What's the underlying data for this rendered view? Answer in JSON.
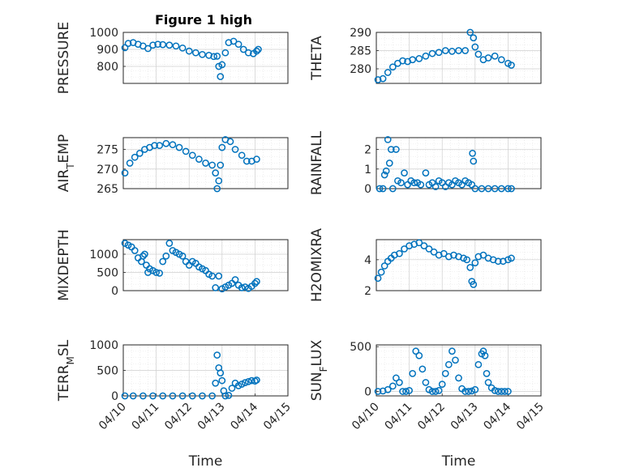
{
  "figure": {
    "title": "Figure 1 high",
    "marker_color": "#0072BD"
  },
  "chart_data": [
    {
      "type": "scatter",
      "ylabel": "PRESSURE",
      "ylim": [
        700,
        1000
      ],
      "yticks": [
        800,
        900,
        1000
      ],
      "xlim": [
        0,
        5
      ],
      "xticks": [],
      "x": [
        0.05,
        0.15,
        0.3,
        0.45,
        0.6,
        0.75,
        0.9,
        1.05,
        1.2,
        1.4,
        1.6,
        1.8,
        2.0,
        2.2,
        2.4,
        2.6,
        2.75,
        2.85,
        2.9,
        2.95,
        3.0,
        3.1,
        3.2,
        3.35,
        3.5,
        3.65,
        3.8,
        3.95,
        4.05,
        4.1
      ],
      "y": [
        910,
        935,
        940,
        930,
        920,
        905,
        925,
        930,
        928,
        925,
        920,
        908,
        890,
        880,
        870,
        865,
        858,
        860,
        800,
        740,
        810,
        880,
        940,
        948,
        930,
        900,
        880,
        875,
        890,
        900
      ]
    },
    {
      "type": "scatter",
      "ylabel": "THETA",
      "ylim": [
        276,
        290
      ],
      "yticks": [
        280,
        285,
        290
      ],
      "xlim": [
        0,
        5
      ],
      "xticks": [],
      "x": [
        0.05,
        0.2,
        0.35,
        0.5,
        0.65,
        0.8,
        0.95,
        1.1,
        1.3,
        1.5,
        1.7,
        1.9,
        2.1,
        2.3,
        2.5,
        2.7,
        2.85,
        2.95,
        3.0,
        3.1,
        3.25,
        3.4,
        3.6,
        3.8,
        4.0,
        4.1
      ],
      "y": [
        277.0,
        277.3,
        279.0,
        280.5,
        281.5,
        282.2,
        282.0,
        282.5,
        282.8,
        283.5,
        284.2,
        284.5,
        285.0,
        284.8,
        285.0,
        285.0,
        290.0,
        288.5,
        286.0,
        284.0,
        282.5,
        283.0,
        283.5,
        282.5,
        281.5,
        281.0
      ]
    },
    {
      "type": "scatter",
      "ylabel": "AIR_TEMP",
      "ylim": [
        265,
        278
      ],
      "yticks": [
        265,
        270,
        275
      ],
      "xlim": [
        0,
        5
      ],
      "xticks": [],
      "x": [
        0.05,
        0.2,
        0.35,
        0.5,
        0.65,
        0.8,
        0.95,
        1.1,
        1.3,
        1.5,
        1.7,
        1.9,
        2.1,
        2.3,
        2.5,
        2.7,
        2.8,
        2.85,
        2.9,
        2.95,
        3.0,
        3.1,
        3.25,
        3.4,
        3.6,
        3.75,
        3.9,
        4.05
      ],
      "y": [
        269.0,
        271.5,
        273.0,
        274.0,
        275.0,
        275.5,
        276.0,
        276.0,
        276.5,
        276.2,
        275.5,
        274.5,
        273.5,
        272.5,
        271.5,
        271.0,
        269.0,
        265.0,
        267.0,
        271.0,
        275.5,
        277.5,
        277.0,
        275.0,
        273.5,
        272.0,
        272.0,
        272.5
      ]
    },
    {
      "type": "scatter",
      "ylabel": "RAINFALL",
      "ylim": [
        0,
        2.6
      ],
      "yticks": [
        0,
        1,
        2
      ],
      "xlim": [
        0,
        5
      ],
      "xticks": [],
      "x": [
        0.1,
        0.2,
        0.25,
        0.3,
        0.35,
        0.4,
        0.45,
        0.5,
        0.6,
        0.65,
        0.75,
        0.85,
        0.95,
        1.05,
        1.15,
        1.25,
        1.35,
        1.5,
        1.6,
        1.7,
        1.8,
        1.9,
        2.0,
        2.1,
        2.2,
        2.3,
        2.4,
        2.5,
        2.6,
        2.7,
        2.8,
        2.9,
        2.92,
        2.95,
        3.0,
        3.2,
        3.4,
        3.6,
        3.8,
        4.0,
        4.1
      ],
      "y": [
        0,
        0,
        0.7,
        0.9,
        2.5,
        1.3,
        2.0,
        0,
        2.0,
        0.4,
        0.3,
        0.8,
        0.2,
        0.4,
        0.3,
        0.3,
        0.2,
        0.8,
        0.2,
        0.3,
        0.1,
        0.4,
        0.3,
        0.1,
        0.3,
        0.2,
        0.4,
        0.3,
        0.2,
        0.4,
        0.3,
        0.2,
        1.8,
        1.4,
        0,
        0,
        0,
        0,
        0,
        0,
        0
      ]
    },
    {
      "type": "scatter",
      "ylabel": "MIXDEPTH",
      "ylim": [
        0,
        1400
      ],
      "yticks": [
        0,
        500,
        1000
      ],
      "xlim": [
        0,
        5
      ],
      "xticks": [],
      "x": [
        0.05,
        0.15,
        0.25,
        0.35,
        0.45,
        0.55,
        0.6,
        0.65,
        0.7,
        0.75,
        0.8,
        0.9,
        1.0,
        1.1,
        1.2,
        1.3,
        1.4,
        1.5,
        1.6,
        1.7,
        1.8,
        1.9,
        2.0,
        2.1,
        2.2,
        2.3,
        2.4,
        2.5,
        2.6,
        2.7,
        2.8,
        2.9,
        3.0,
        3.1,
        3.2,
        3.3,
        3.4,
        3.5,
        3.6,
        3.7,
        3.8,
        3.9,
        4.0,
        4.05
      ],
      "y": [
        1300,
        1250,
        1200,
        1100,
        900,
        800,
        950,
        1000,
        700,
        500,
        600,
        550,
        500,
        480,
        800,
        950,
        1300,
        1100,
        1050,
        1000,
        950,
        800,
        700,
        800,
        750,
        650,
        600,
        550,
        450,
        400,
        80,
        400,
        50,
        100,
        150,
        200,
        300,
        150,
        80,
        100,
        60,
        120,
        200,
        250
      ]
    },
    {
      "type": "scatter",
      "ylabel": "H2OMIXRA",
      "ylim": [
        2,
        5.3
      ],
      "yticks": [
        2,
        4
      ],
      "xlim": [
        0,
        5
      ],
      "xticks": [],
      "x": [
        0.05,
        0.15,
        0.25,
        0.35,
        0.45,
        0.55,
        0.7,
        0.85,
        1.0,
        1.15,
        1.3,
        1.45,
        1.6,
        1.75,
        1.9,
        2.05,
        2.2,
        2.35,
        2.5,
        2.65,
        2.75,
        2.85,
        2.9,
        2.95,
        3.0,
        3.1,
        3.25,
        3.4,
        3.55,
        3.7,
        3.85,
        4.0,
        4.1
      ],
      "y": [
        2.8,
        3.2,
        3.6,
        3.9,
        4.1,
        4.3,
        4.4,
        4.7,
        4.9,
        5.0,
        5.1,
        4.9,
        4.7,
        4.5,
        4.3,
        4.4,
        4.2,
        4.3,
        4.2,
        4.1,
        4.0,
        3.5,
        2.6,
        2.4,
        3.8,
        4.2,
        4.3,
        4.1,
        4.0,
        3.9,
        3.9,
        4.0,
        4.1
      ]
    },
    {
      "type": "scatter",
      "ylabel": "TERR_MSL",
      "ylim": [
        0,
        1000
      ],
      "yticks": [
        0,
        500,
        1000
      ],
      "xlim": [
        0,
        5
      ],
      "xticks": [
        0,
        1,
        2,
        3,
        4,
        5
      ],
      "xticklabels": [
        "04/10",
        "04/11",
        "04/12",
        "04/13",
        "04/14",
        "04/15"
      ],
      "xlabel": "Time",
      "x": [
        0.05,
        0.3,
        0.6,
        0.9,
        1.2,
        1.5,
        1.8,
        2.1,
        2.4,
        2.7,
        2.8,
        2.85,
        2.9,
        2.95,
        3.0,
        3.05,
        3.1,
        3.2,
        3.3,
        3.4,
        3.5,
        3.6,
        3.7,
        3.8,
        3.9,
        4.0,
        4.05
      ],
      "y": [
        0,
        0,
        0,
        0,
        0,
        0,
        0,
        0,
        0,
        0,
        250,
        800,
        550,
        450,
        300,
        100,
        0,
        10,
        150,
        250,
        200,
        230,
        260,
        280,
        300,
        290,
        310
      ]
    },
    {
      "type": "scatter",
      "ylabel": "SUN_FLUX",
      "ylim": [
        -50,
        520
      ],
      "yticks": [
        0,
        500
      ],
      "xlim": [
        0,
        5
      ],
      "xticks": [
        0,
        1,
        2,
        3,
        4,
        5
      ],
      "xticklabels": [
        "04/10",
        "04/11",
        "04/12",
        "04/13",
        "04/14",
        "04/15"
      ],
      "xlabel": "Time",
      "x": [
        0.05,
        0.2,
        0.35,
        0.5,
        0.6,
        0.7,
        0.8,
        0.9,
        1.0,
        1.1,
        1.2,
        1.3,
        1.4,
        1.5,
        1.6,
        1.7,
        1.8,
        1.9,
        2.0,
        2.1,
        2.2,
        2.3,
        2.4,
        2.5,
        2.6,
        2.7,
        2.8,
        2.9,
        3.0,
        3.1,
        3.2,
        3.25,
        3.3,
        3.35,
        3.4,
        3.5,
        3.6,
        3.7,
        3.8,
        3.9,
        4.0
      ],
      "y": [
        0,
        5,
        20,
        60,
        150,
        100,
        0,
        0,
        10,
        200,
        450,
        400,
        250,
        100,
        20,
        0,
        0,
        10,
        80,
        200,
        300,
        450,
        350,
        150,
        30,
        0,
        0,
        5,
        20,
        300,
        420,
        450,
        400,
        200,
        100,
        40,
        10,
        0,
        0,
        0,
        0
      ]
    }
  ]
}
